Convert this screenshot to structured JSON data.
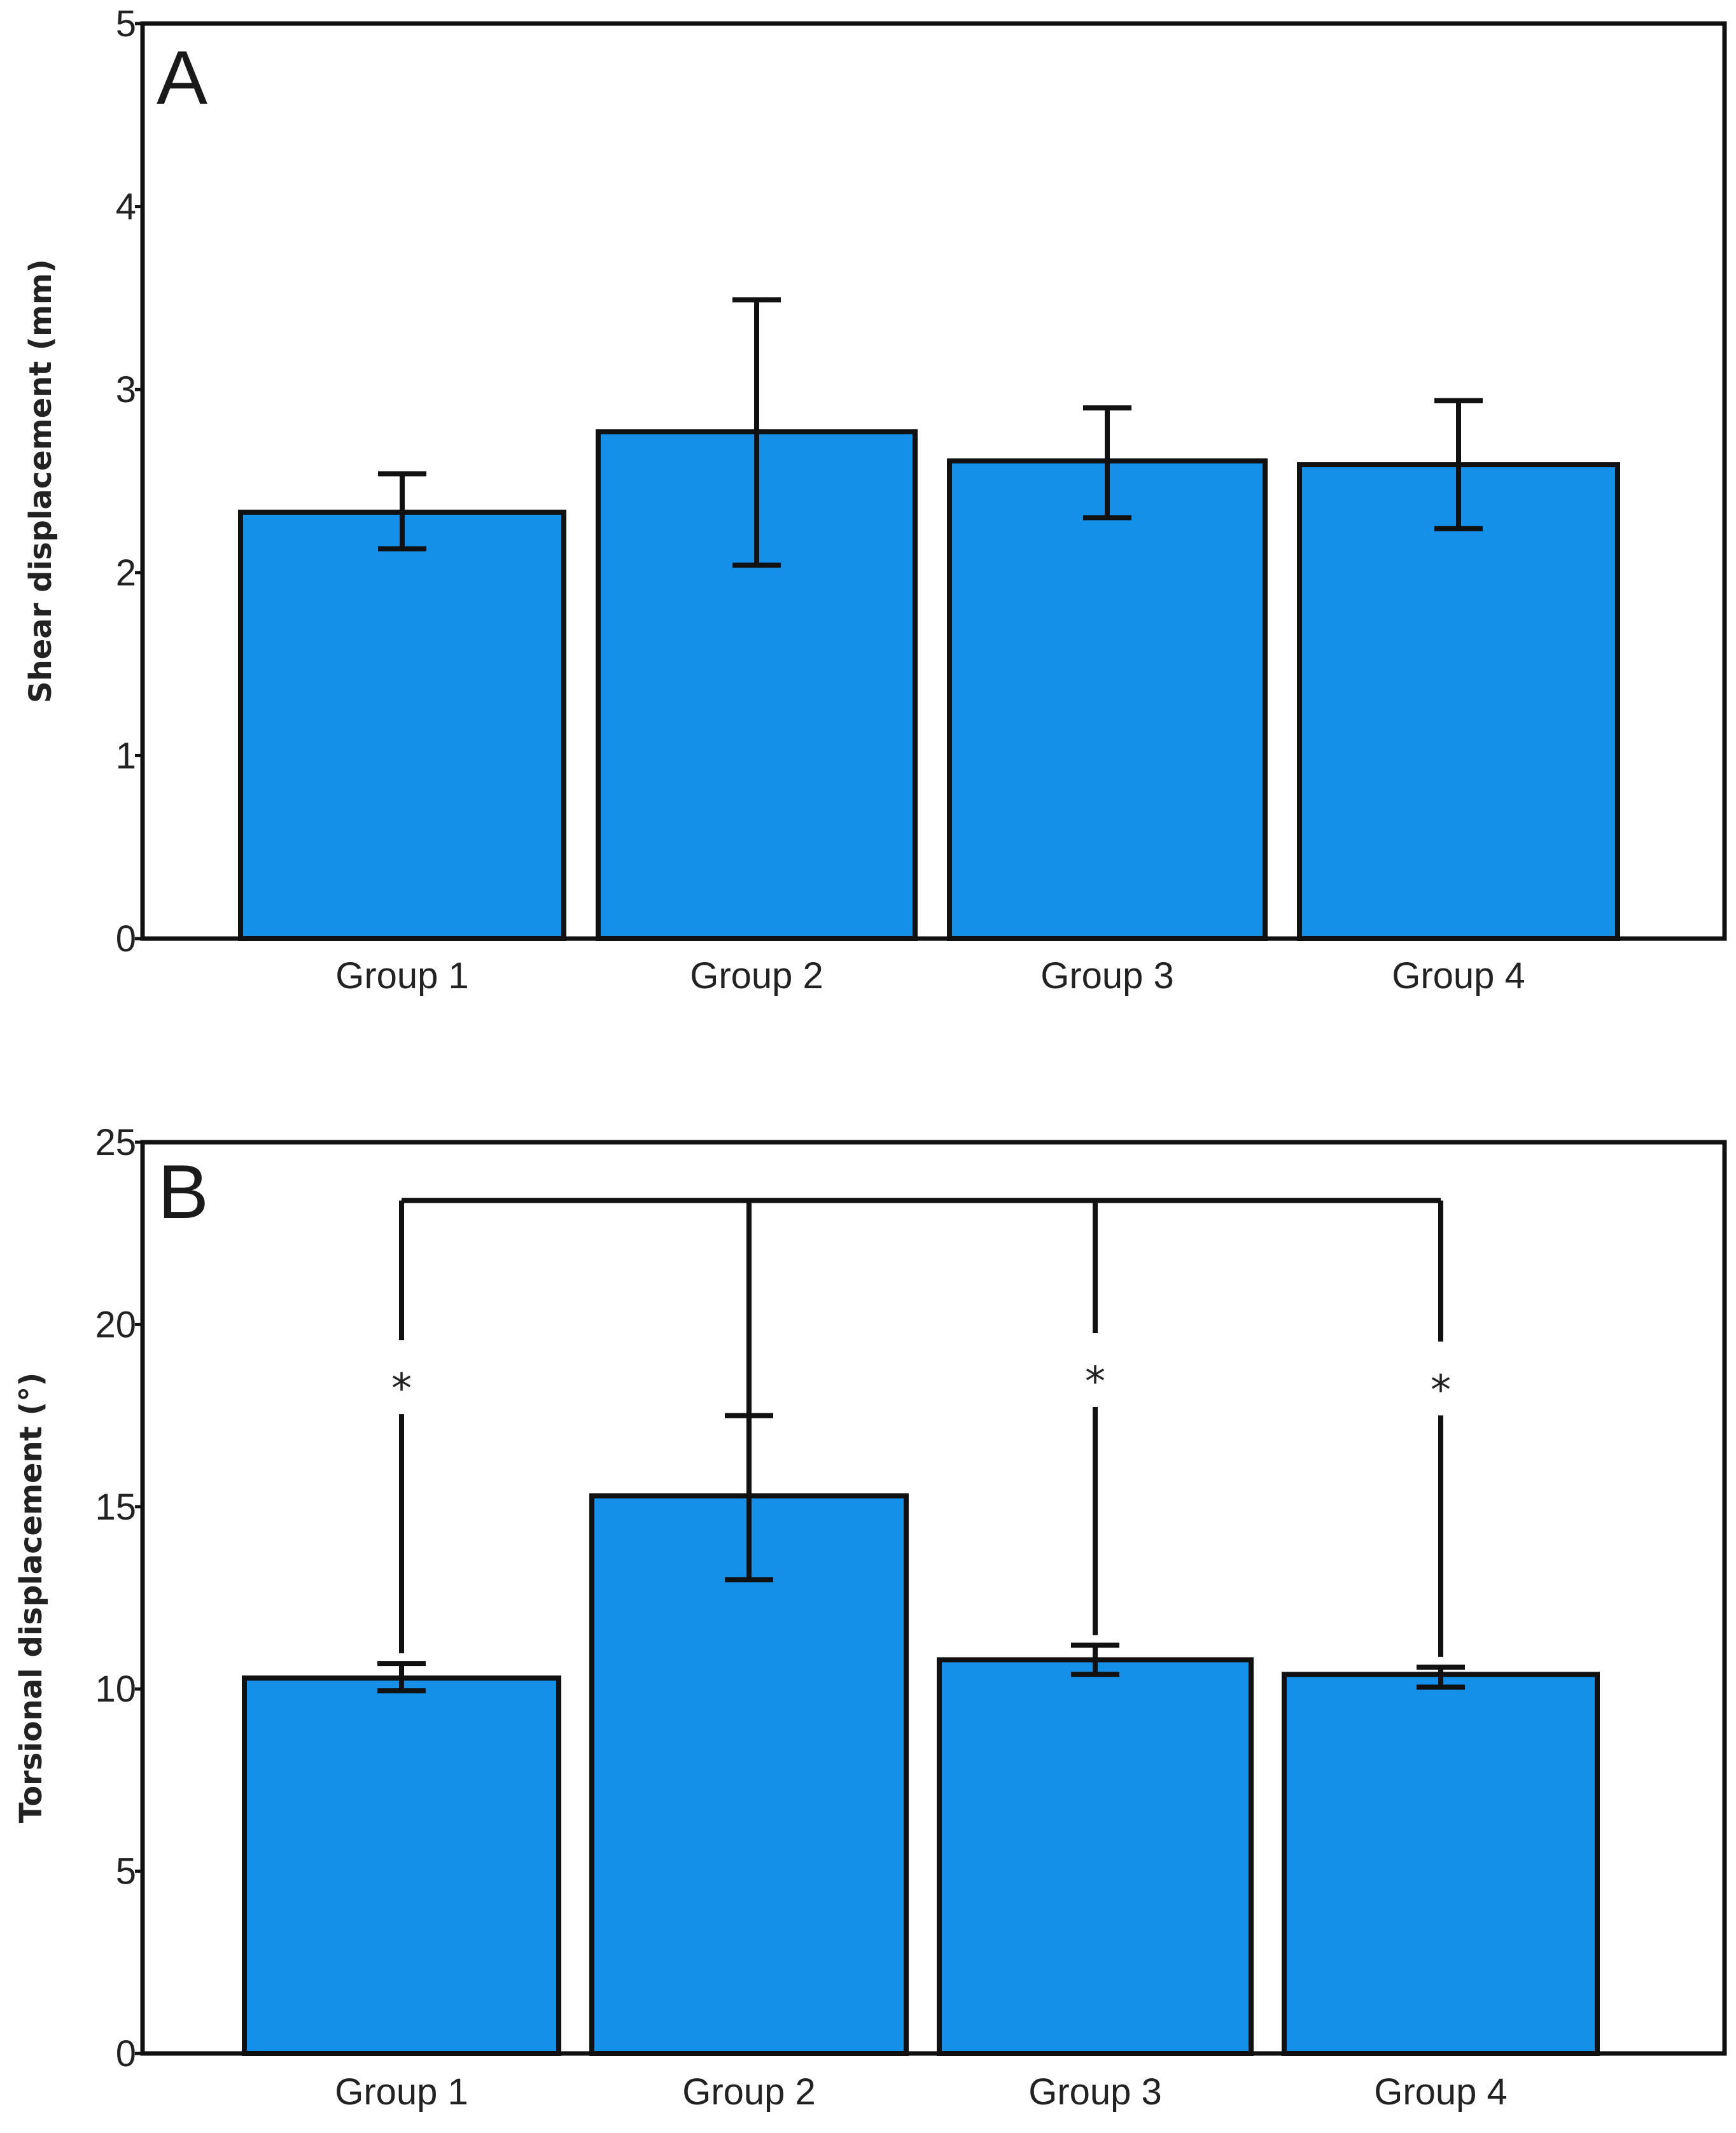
{
  "chart_data": [
    {
      "panel": "A",
      "type": "bar",
      "title": "",
      "xlabel": "",
      "ylabel": "Shear displacement (mm)",
      "ylim": [
        0,
        5
      ],
      "yticks": [
        0,
        1,
        2,
        3,
        4,
        5
      ],
      "categories": [
        "Group 1",
        "Group 2",
        "Group 3",
        "Group 4"
      ],
      "values": [
        2.33,
        2.77,
        2.61,
        2.59
      ],
      "error_low": [
        2.13,
        2.04,
        2.3,
        2.24
      ],
      "error_high": [
        2.54,
        3.49,
        2.9,
        2.94
      ],
      "bar_color": "#1590E8",
      "significance": []
    },
    {
      "panel": "B",
      "type": "bar",
      "title": "",
      "xlabel": "",
      "ylabel": "Torsional displacement (°)",
      "ylim": [
        0,
        25
      ],
      "yticks": [
        0,
        5,
        10,
        15,
        20,
        25
      ],
      "categories": [
        "Group 1",
        "Group 2",
        "Group 3",
        "Group 4"
      ],
      "values": [
        10.3,
        15.3,
        10.8,
        10.4
      ],
      "error_low": [
        9.95,
        13.0,
        10.4,
        10.05
      ],
      "error_high": [
        10.7,
        17.5,
        11.2,
        10.6
      ],
      "bar_color": "#1590E8",
      "significance": {
        "reference": "Group 2",
        "bracket_y": 23.4,
        "marked_groups": [
          "Group 1",
          "Group 3",
          "Group 4"
        ],
        "marker": "*"
      }
    }
  ]
}
